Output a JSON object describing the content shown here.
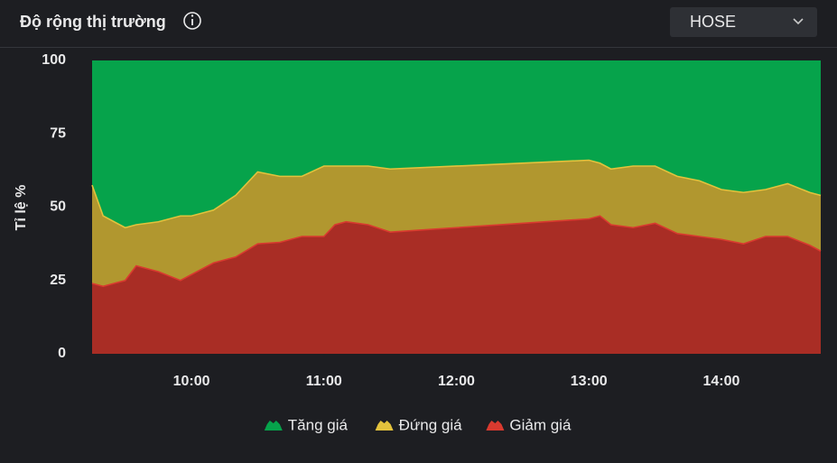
{
  "chart_data": {
    "type": "stacked-area",
    "title": "Độ rộng thị trường",
    "selector": "HOSE",
    "y_label": "Tỉ lệ %",
    "x": [
      "09:15",
      "09:20",
      "09:30",
      "09:35",
      "09:45",
      "09:55",
      "10:00",
      "10:10",
      "10:20",
      "10:30",
      "10:40",
      "10:50",
      "11:00",
      "11:05",
      "11:10",
      "11:20",
      "11:30",
      "13:00",
      "13:05",
      "13:10",
      "13:20",
      "13:30",
      "13:40",
      "13:50",
      "14:00",
      "14:10",
      "14:20",
      "14:30",
      "14:40",
      "14:45"
    ],
    "series": [
      {
        "name": "Tăng giá",
        "color": "#06a34b",
        "values": [
          42.5,
          53,
          57,
          56,
          55,
          53,
          53,
          51,
          46,
          38,
          39.5,
          39.5,
          36,
          36,
          36,
          36,
          37,
          34,
          35,
          37,
          36,
          36,
          39.5,
          41,
          44,
          45,
          44,
          42,
          45,
          46
        ]
      },
      {
        "name": "Đứng giá",
        "color": "#e3c23c",
        "values": [
          33.5,
          24,
          18,
          14,
          17,
          22,
          20,
          18,
          21,
          24.5,
          22.5,
          20.5,
          24,
          20,
          19,
          20,
          21.5,
          20,
          18,
          19,
          21,
          19.5,
          19.5,
          19,
          17,
          17.5,
          16,
          18,
          18,
          19
        ]
      },
      {
        "name": "Giảm giá",
        "color": "#d93a2f",
        "values": [
          24,
          23,
          25,
          30,
          28,
          25,
          27,
          31,
          33,
          37.5,
          38,
          40,
          40,
          44,
          45,
          44,
          41.5,
          46,
          47,
          44,
          43,
          44.5,
          41,
          40,
          39,
          37.5,
          40,
          40,
          37,
          35
        ]
      }
    ],
    "stacked": true,
    "xlim": [
      "09:15",
      "14:45"
    ],
    "xticks": [
      "10:00",
      "11:00",
      "12:00",
      "13:00",
      "14:00"
    ],
    "ylim": [
      0,
      100
    ],
    "yticks": [
      0,
      25,
      50,
      75,
      100
    ],
    "grid": false,
    "legend": "bottom"
  }
}
